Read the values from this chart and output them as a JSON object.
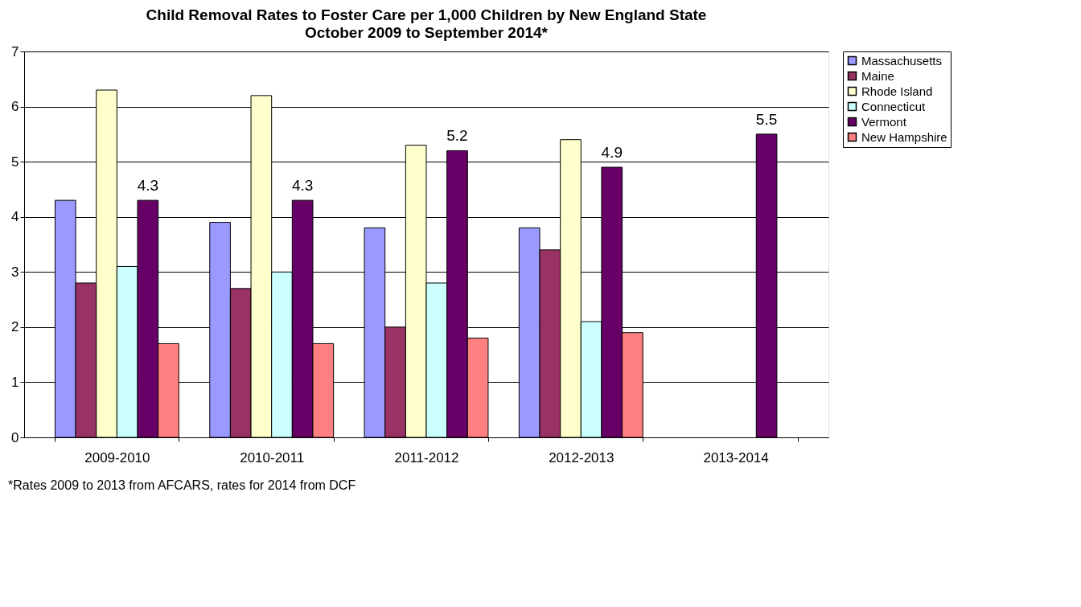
{
  "chart_data": {
    "type": "bar",
    "title": "Child Removal Rates to Foster Care per 1,000 Children by New England State",
    "subtitle": "October 2009 to September 2014*",
    "categories": [
      "2009-2010",
      "2010-2011",
      "2011-2012",
      "2012-2013",
      "2013-2014"
    ],
    "series": [
      {
        "name": "Massachusetts",
        "color": "#9999ff",
        "values": [
          4.3,
          3.9,
          3.8,
          3.8,
          null
        ]
      },
      {
        "name": "Maine",
        "color": "#993366",
        "values": [
          2.8,
          2.7,
          2.0,
          3.4,
          null
        ]
      },
      {
        "name": "Rhode Island",
        "color": "#ffffcc",
        "values": [
          6.3,
          6.2,
          5.3,
          5.4,
          null
        ]
      },
      {
        "name": "Connecticut",
        "color": "#ccffff",
        "values": [
          3.1,
          3.0,
          2.8,
          2.1,
          null
        ]
      },
      {
        "name": "Vermont",
        "color": "#660066",
        "values": [
          4.3,
          4.3,
          5.2,
          4.9,
          5.5
        ],
        "value_labels": [
          "4.3",
          "4.3",
          "5.2",
          "4.9",
          "5.5"
        ]
      },
      {
        "name": "New Hampshire",
        "color": "#ff8080",
        "values": [
          1.7,
          1.7,
          1.8,
          1.9,
          null
        ]
      }
    ],
    "ylim": [
      0,
      7
    ],
    "yticks": [
      0,
      1,
      2,
      3,
      4,
      5,
      6,
      7
    ],
    "grid": "y",
    "legend": "top right",
    "annotations": [
      "*Rates 2009 to 2013 from AFCARS, rates for 2014 from DCF"
    ]
  }
}
